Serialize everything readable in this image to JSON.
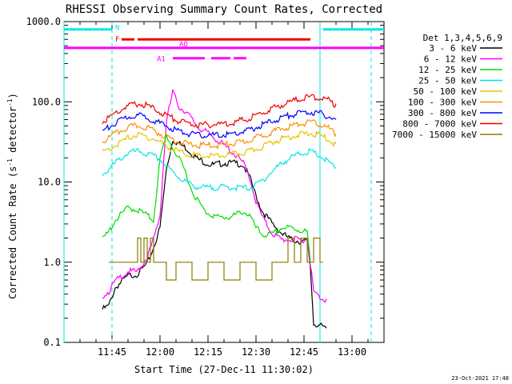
{
  "chart_data": {
    "type": "line",
    "title": "RHESSI Observing Summary Count Rates, Corrected",
    "xlabel": "Start Time (27-Dec-11 11:30:02)",
    "ylabel_main": "Corrected Count Rate (s",
    "ylabel_sup1": "-1",
    "ylabel_mid": " detector",
    "ylabel_sup2": "-1",
    "ylabel_end": ")",
    "yscale": "log",
    "ylim": [
      0.1,
      1000
    ],
    "xlim": [
      "11:30",
      "13:10"
    ],
    "yticks": [
      "0.1",
      "1.0",
      "10.0",
      "100.0",
      "1000.0"
    ],
    "xticks": [
      "11:45",
      "12:00",
      "12:15",
      "12:30",
      "12:45",
      "13:00"
    ],
    "timestamp": "23-Oct-2021 17:48",
    "legend_title": "Det 1,3,4,5,6,9",
    "legend_position": "right",
    "series": [
      {
        "name": "3 - 6 keV",
        "color": "#000000",
        "x": [
          "11:42",
          "11:44",
          "11:46",
          "11:48",
          "11:50",
          "11:53",
          "11:56",
          "11:58",
          "12:00",
          "12:02",
          "12:04",
          "12:08",
          "12:12",
          "12:16",
          "12:20",
          "12:24",
          "12:26",
          "12:28",
          "12:30",
          "12:32",
          "12:35",
          "12:38",
          "12:41",
          "12:44",
          "12:46",
          "12:47",
          "12:48",
          "12:50",
          "12:52"
        ],
        "y": [
          0.27,
          0.3,
          0.5,
          0.6,
          0.7,
          0.75,
          1.0,
          1.6,
          2.8,
          15,
          35,
          28,
          20,
          17,
          18,
          18,
          17,
          12,
          7,
          4.5,
          3.2,
          2.4,
          2.0,
          1.9,
          1.9,
          0.9,
          0.18,
          0.17,
          0.15
        ]
      },
      {
        "name": "6 - 12 keV",
        "color": "#ff00ff",
        "x": [
          "11:42",
          "11:44",
          "11:46",
          "11:48",
          "11:50",
          "11:53",
          "11:56",
          "11:58",
          "12:00",
          "12:02",
          "12:04",
          "12:06",
          "12:08",
          "12:12",
          "12:16",
          "12:20",
          "12:24",
          "12:26",
          "12:28",
          "12:30",
          "12:32",
          "12:35",
          "12:38",
          "12:41",
          "12:44",
          "12:46",
          "12:47",
          "12:48",
          "12:50",
          "12:52"
        ],
        "y": [
          0.4,
          0.45,
          0.6,
          0.7,
          0.8,
          0.8,
          1.2,
          2.0,
          4.0,
          60,
          140,
          90,
          80,
          50,
          40,
          30,
          22,
          18,
          12,
          6,
          3.8,
          2.4,
          2.0,
          2.0,
          2.0,
          2.0,
          1.0,
          0.45,
          0.38,
          0.35
        ]
      },
      {
        "name": "12 - 25 keV",
        "color": "#00dd00",
        "x": [
          "11:42",
          "11:44",
          "11:46",
          "11:48",
          "11:50",
          "11:52",
          "11:54",
          "11:56",
          "11:58",
          "12:00",
          "12:02",
          "12:04",
          "12:06",
          "12:08",
          "12:10",
          "12:12",
          "12:14",
          "12:18",
          "12:22",
          "12:26",
          "12:28",
          "12:30",
          "12:32",
          "12:35",
          "12:38",
          "12:41",
          "12:44",
          "12:46",
          "12:47"
        ],
        "y": [
          2.0,
          2.5,
          3.5,
          4.2,
          5.0,
          4.8,
          4.5,
          4.0,
          3.5,
          20,
          40,
          28,
          20,
          14,
          8,
          6,
          4.5,
          3.8,
          3.8,
          4.5,
          4.0,
          2.8,
          2.3,
          2.3,
          2.8,
          2.8,
          2.6,
          2.5,
          1.0
        ]
      },
      {
        "name": "25 - 50 keV",
        "color": "#00e5e5",
        "x": [
          "11:42",
          "11:44",
          "11:46",
          "11:48",
          "11:50",
          "11:52",
          "11:54",
          "11:56",
          "11:58",
          "12:00",
          "12:03",
          "12:06",
          "12:09",
          "12:12",
          "12:15",
          "12:18",
          "12:22",
          "12:26",
          "12:29",
          "12:32",
          "12:35",
          "12:38",
          "12:41",
          "12:44",
          "12:47",
          "12:50",
          "12:53",
          "12:55"
        ],
        "y": [
          13,
          15,
          18,
          21,
          24,
          25,
          25,
          23,
          22,
          20,
          15,
          12,
          10,
          9.0,
          8.8,
          9.0,
          9.0,
          8.8,
          9.0,
          11,
          14,
          18,
          21,
          24,
          25,
          22,
          18,
          15
        ]
      },
      {
        "name": "50 - 100 keV",
        "color": "#e5c400",
        "x": [
          "11:42",
          "11:44",
          "11:46",
          "11:48",
          "11:50",
          "11:52",
          "11:54",
          "11:56",
          "11:58",
          "12:00",
          "12:03",
          "12:06",
          "12:09",
          "12:12",
          "12:15",
          "12:18",
          "12:22",
          "12:26",
          "12:29",
          "12:32",
          "12:35",
          "12:38",
          "12:41",
          "12:44",
          "12:47",
          "12:50",
          "12:53",
          "12:55"
        ],
        "y": [
          24,
          27,
          30,
          33,
          37,
          40,
          40,
          38,
          36,
          33,
          28,
          25,
          23,
          22,
          22,
          22,
          23,
          24,
          26,
          29,
          33,
          36,
          39,
          41,
          42,
          40,
          35,
          30
        ]
      },
      {
        "name": "100 - 300 keV",
        "color": "#ff8c00",
        "x": [
          "11:42",
          "11:44",
          "11:46",
          "11:48",
          "11:50",
          "11:52",
          "11:54",
          "11:56",
          "11:58",
          "12:00",
          "12:03",
          "12:06",
          "12:09",
          "12:12",
          "12:15",
          "12:18",
          "12:22",
          "12:26",
          "12:29",
          "12:32",
          "12:35",
          "12:38",
          "12:41",
          "12:44",
          "12:47",
          "12:50",
          "12:53",
          "12:55"
        ],
        "y": [
          33,
          37,
          42,
          46,
          50,
          52,
          52,
          50,
          46,
          42,
          37,
          33,
          31,
          30,
          30,
          30,
          31,
          33,
          36,
          40,
          44,
          48,
          52,
          56,
          58,
          55,
          48,
          40
        ]
      },
      {
        "name": "300 - 800 keV",
        "color": "#0000ff",
        "x": [
          "11:42",
          "11:44",
          "11:46",
          "11:48",
          "11:50",
          "11:52",
          "11:54",
          "11:56",
          "11:58",
          "12:00",
          "12:03",
          "12:06",
          "12:09",
          "12:12",
          "12:15",
          "12:18",
          "12:22",
          "12:26",
          "12:29",
          "12:32",
          "12:35",
          "12:38",
          "12:41",
          "12:44",
          "12:47",
          "12:50",
          "12:53",
          "12:55"
        ],
        "y": [
          45,
          50,
          56,
          62,
          68,
          70,
          70,
          67,
          62,
          56,
          50,
          45,
          42,
          40,
          40,
          40,
          41,
          44,
          48,
          54,
          60,
          66,
          72,
          76,
          78,
          75,
          68,
          60
        ]
      },
      {
        "name": "800 - 7000 keV",
        "color": "#ee0000",
        "x": [
          "11:42",
          "11:44",
          "11:46",
          "11:48",
          "11:50",
          "11:52",
          "11:54",
          "11:56",
          "11:58",
          "12:00",
          "12:03",
          "12:06",
          "12:09",
          "12:12",
          "12:15",
          "12:18",
          "12:22",
          "12:26",
          "12:29",
          "12:32",
          "12:35",
          "12:38",
          "12:41",
          "12:44",
          "12:47",
          "12:50",
          "12:53",
          "12:55"
        ],
        "y": [
          58,
          66,
          75,
          84,
          92,
          98,
          98,
          94,
          86,
          78,
          68,
          60,
          56,
          54,
          54,
          55,
          57,
          62,
          68,
          76,
          86,
          96,
          106,
          115,
          120,
          118,
          108,
          95
        ]
      },
      {
        "name": "7000 - 15000 keV",
        "color": "#8b7a00",
        "style": "steps",
        "x": [
          "11:44",
          "11:49",
          "11:50",
          "11:53",
          "11:54",
          "11:55",
          "11:56",
          "11:57",
          "11:58",
          "12:00",
          "12:02",
          "12:05",
          "12:10",
          "12:15",
          "12:20",
          "12:25",
          "12:30",
          "12:35",
          "12:38",
          "12:40",
          "12:42",
          "12:44",
          "12:46",
          "12:48",
          "12:50"
        ],
        "y": [
          1.0,
          1.0,
          1.0,
          2.0,
          1.0,
          2.0,
          1.0,
          2.0,
          1.0,
          1.0,
          0.6,
          1.0,
          0.6,
          1.0,
          0.6,
          1.0,
          0.6,
          1.0,
          1.0,
          2.0,
          1.0,
          2.0,
          1.0,
          2.0,
          1.0
        ]
      }
    ],
    "flag_bars": [
      {
        "label": "N",
        "color": "#00e5e5",
        "y": 800,
        "segments": [
          [
            "11:30",
            "11:45"
          ],
          [
            "12:51",
            "13:10"
          ]
        ]
      },
      {
        "label": "F",
        "color": "#ee0000",
        "y": 600,
        "segments": [
          [
            "11:48",
            "11:52"
          ],
          [
            "11:53",
            "12:47"
          ]
        ]
      },
      {
        "label": "AO",
        "color": "#ff00ff",
        "y": 470,
        "segments": [
          [
            "11:30",
            "13:10"
          ]
        ]
      },
      {
        "label": "A1",
        "color": "#ff00ff",
        "y": 350,
        "segments": [
          [
            "12:04",
            "12:14"
          ],
          [
            "12:16",
            "12:22"
          ],
          [
            "12:23",
            "12:27"
          ]
        ]
      }
    ],
    "vlines": [
      {
        "x": "11:30",
        "color": "#00e5e5",
        "style": "solid"
      },
      {
        "x": "11:45",
        "color": "#00e5e5",
        "style": "dashed"
      },
      {
        "x": "12:50",
        "color": "#00e5e5",
        "style": "solid"
      },
      {
        "x": "13:06",
        "color": "#00e5e5",
        "style": "dashed"
      }
    ]
  }
}
